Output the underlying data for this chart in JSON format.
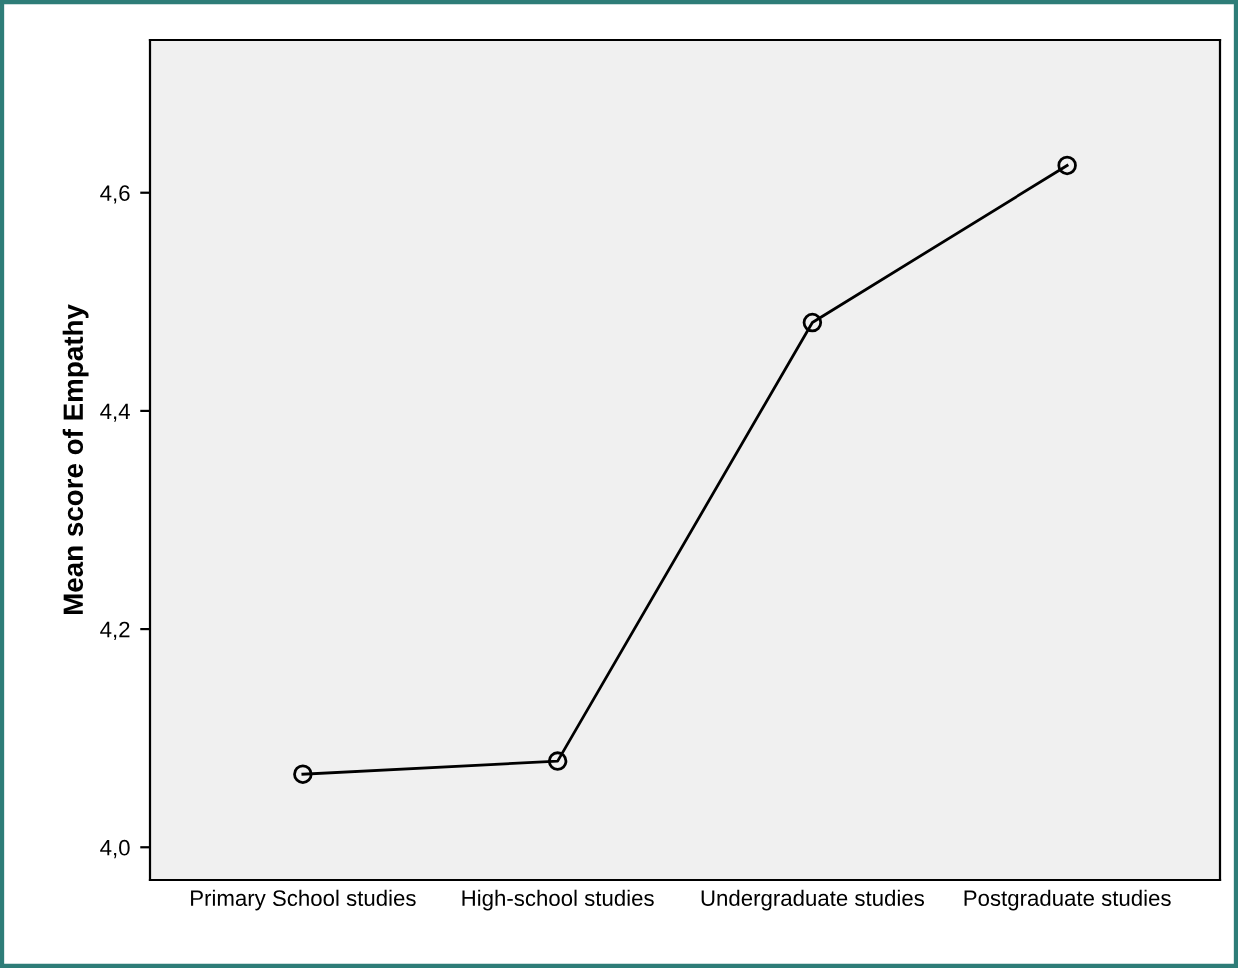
{
  "chart_data": {
    "type": "line",
    "ylabel": "Mean score of Empathy",
    "categories": [
      "Primary School studies",
      "High-school studies",
      "Undergraduate studies",
      "Postgraduate studies"
    ],
    "series": [
      {
        "color": "#000000",
        "values": [
          4.067,
          4.079,
          4.481,
          4.625
        ]
      }
    ],
    "ylim": [
      3.97,
      4.74
    ],
    "yticks": [
      {
        "value": 4.0,
        "label": "4,0"
      },
      {
        "value": 4.2,
        "label": "4,2"
      },
      {
        "value": 4.4,
        "label": "4,4"
      },
      {
        "value": 4.6,
        "label": "4,6"
      }
    ],
    "marker": "circle",
    "line_style": "solid",
    "grid": false,
    "legend": false
  }
}
